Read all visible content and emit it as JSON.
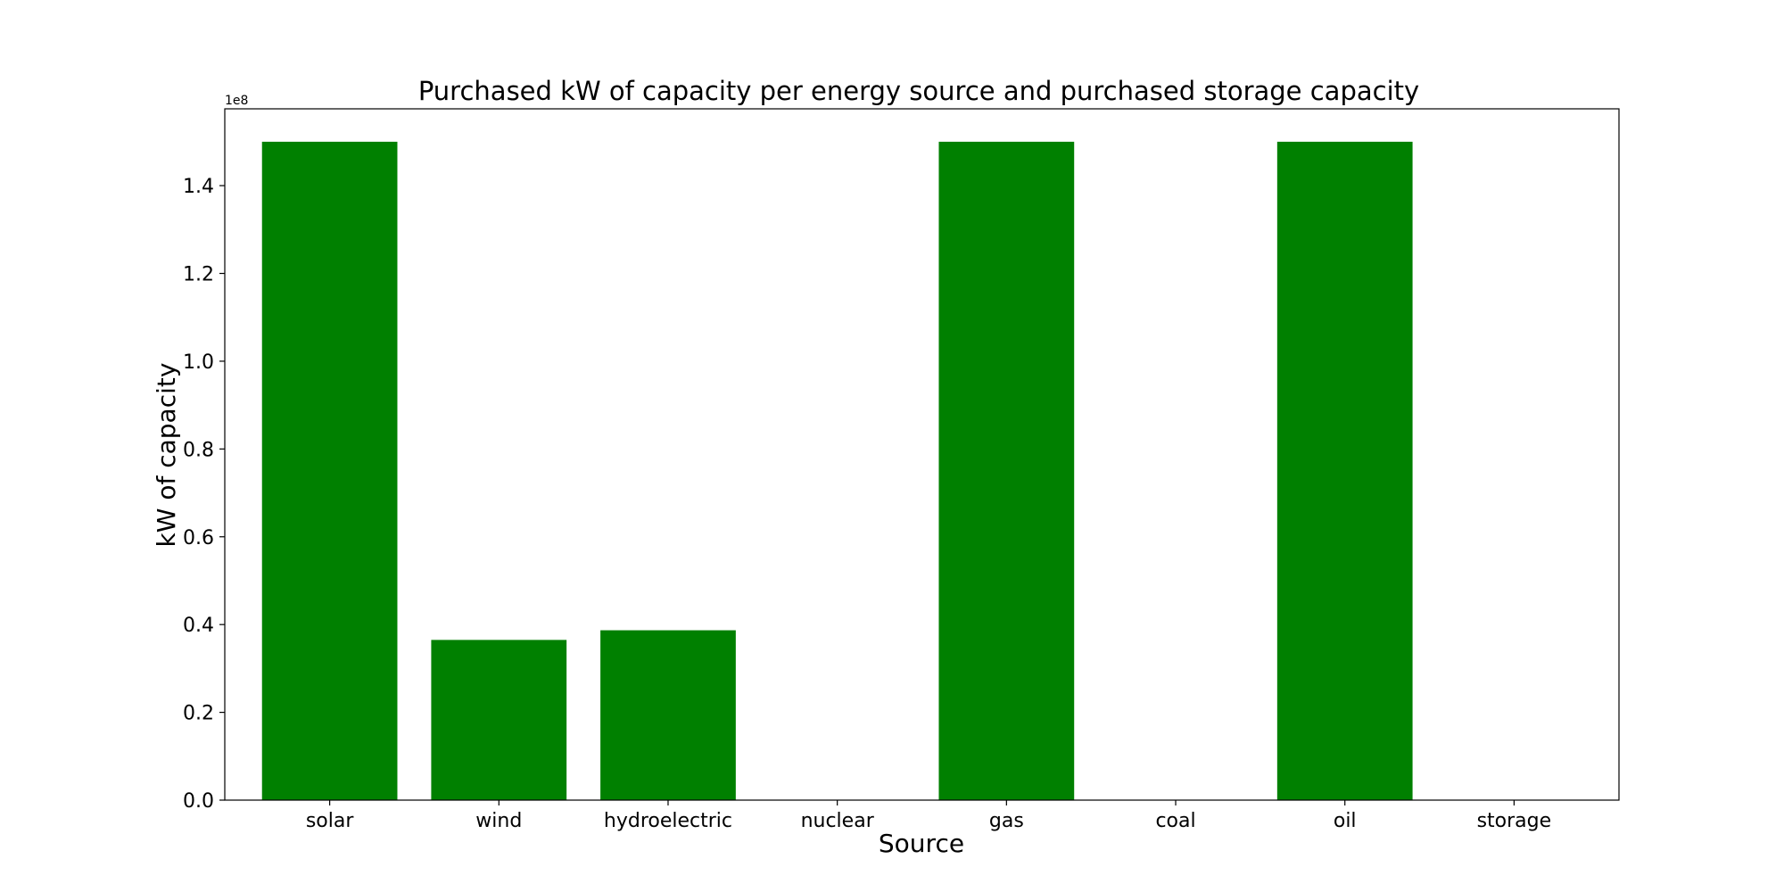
{
  "chart_data": {
    "type": "bar",
    "title": "Purchased kW of capacity per energy source and purchased storage capacity",
    "xlabel": "Source",
    "ylabel": "kW of capacity",
    "y_offset_label": "1e8",
    "categories": [
      "solar",
      "wind",
      "hydroelectric",
      "nuclear",
      "gas",
      "coal",
      "oil",
      "storage"
    ],
    "values": [
      150000000,
      36500000,
      38700000,
      0,
      150000000,
      0,
      150000000,
      0
    ],
    "ylim": [
      0,
      157500000
    ],
    "yticks": [
      0,
      20000000,
      40000000,
      60000000,
      80000000,
      100000000,
      120000000,
      140000000
    ],
    "ytick_labels": [
      "0.0",
      "0.2",
      "0.4",
      "0.6",
      "0.8",
      "1.0",
      "1.2",
      "1.4"
    ],
    "bar_color": "#008000",
    "grid": false,
    "legend": "none"
  }
}
